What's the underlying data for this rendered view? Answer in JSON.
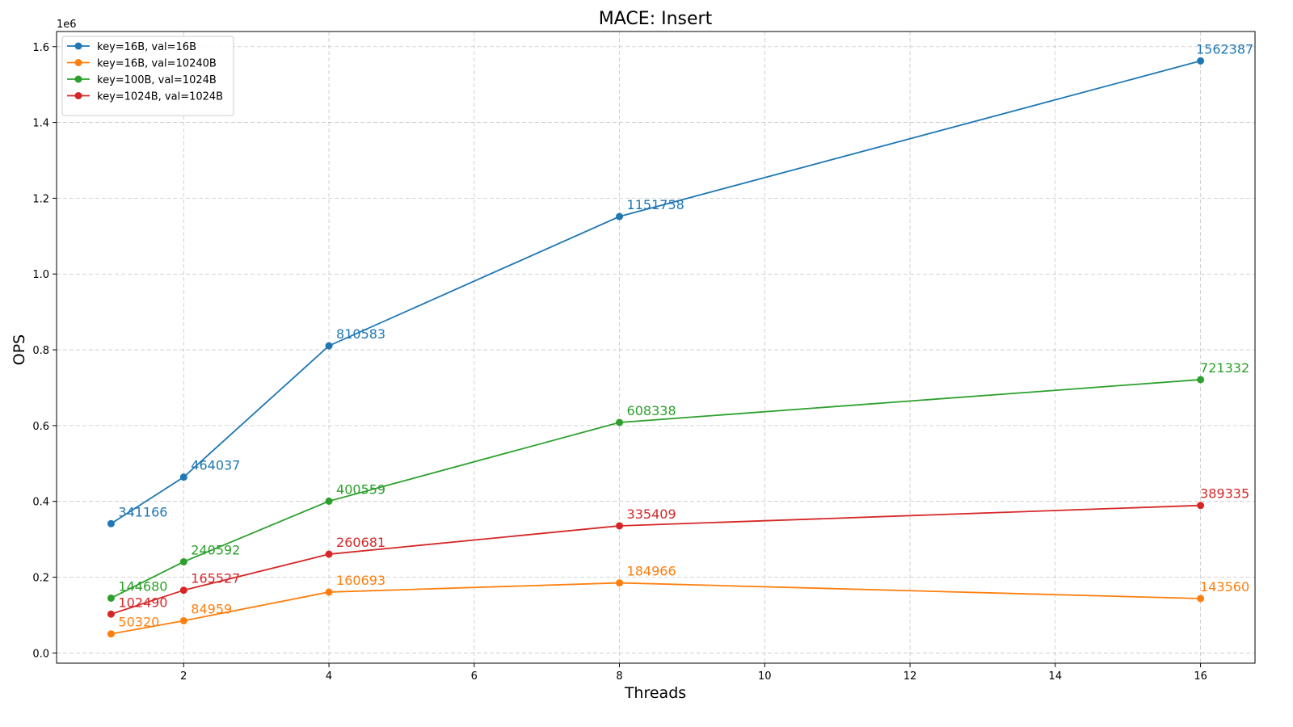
{
  "chart_data": {
    "type": "line",
    "title": "MACE: Insert",
    "xlabel": "Threads",
    "ylabel": "OPS",
    "y_offset_label": "1e6",
    "x": [
      1,
      2,
      4,
      8,
      16
    ],
    "xlim": [
      0.25,
      16.75
    ],
    "ylim": [
      -0.027,
      1.64
    ],
    "y_scale": 1000000,
    "xticks": [
      2,
      4,
      6,
      8,
      10,
      12,
      14,
      16
    ],
    "yticks": [
      0.0,
      0.2,
      0.4,
      0.6,
      0.8,
      1.0,
      1.2,
      1.4,
      1.6
    ],
    "ytick_labels": [
      "0.0",
      "0.2",
      "0.4",
      "0.6",
      "0.8",
      "1.0",
      "1.2",
      "1.4",
      "1.6"
    ],
    "grid": true,
    "legend_position": "top-left",
    "series": [
      {
        "name": "key=16B, val=16B",
        "color": "#1f77b4",
        "values": [
          341166,
          464037,
          810583,
          1151758,
          1562387
        ]
      },
      {
        "name": "key=16B, val=10240B",
        "color": "#ff7f0e",
        "values": [
          50320,
          84959,
          160693,
          184966,
          143560
        ]
      },
      {
        "name": "key=100B, val=1024B",
        "color": "#2ca02c",
        "values": [
          144680,
          240592,
          400559,
          608338,
          721332
        ]
      },
      {
        "name": "key=1024B, val=1024B",
        "color": "#d62728",
        "values": [
          102490,
          165527,
          260681,
          335409,
          389335
        ]
      }
    ]
  }
}
